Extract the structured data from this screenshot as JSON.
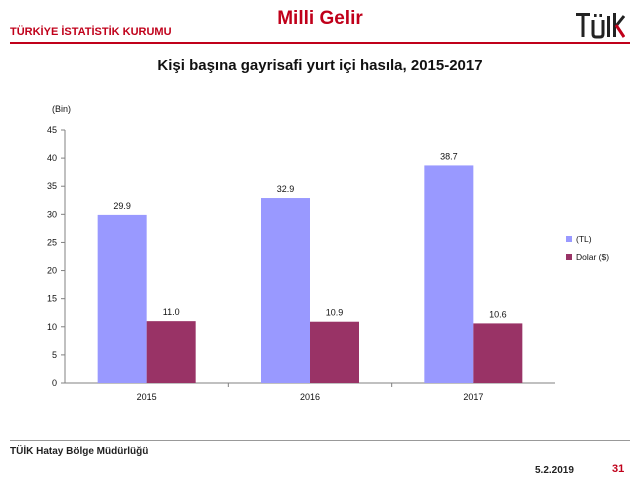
{
  "header": {
    "organization": "TÜRKİYE İSTATİSTİK KURUMU",
    "section": "Milli Gelir",
    "logo_text": "TÜİK"
  },
  "colors": {
    "brand": "#c0001a",
    "series_tl": "#9999ff",
    "series_usd": "#993366"
  },
  "chart_data": {
    "type": "bar",
    "title": "Kişi başına gayrisafi yurt içi hasıla, 2015-2017",
    "unit_label": "(Bin)",
    "categories": [
      "2015",
      "2016",
      "2017"
    ],
    "series": [
      {
        "name": "(TL)",
        "values": [
          29.9,
          32.9,
          38.7
        ],
        "color": "#9999ff"
      },
      {
        "name": "Dolar ($)",
        "values": [
          11.0,
          10.9,
          10.6
        ],
        "color": "#993366"
      }
    ],
    "ylim": [
      0,
      45
    ],
    "yticks": [
      0,
      5,
      10,
      15,
      20,
      25,
      30,
      35,
      40,
      45
    ],
    "grid": false,
    "legend": "right",
    "data_labels": true
  },
  "footer": {
    "office": "TÜİK Hatay Bölge Müdürlüğü",
    "date": "5.2.2019",
    "page": "31"
  }
}
